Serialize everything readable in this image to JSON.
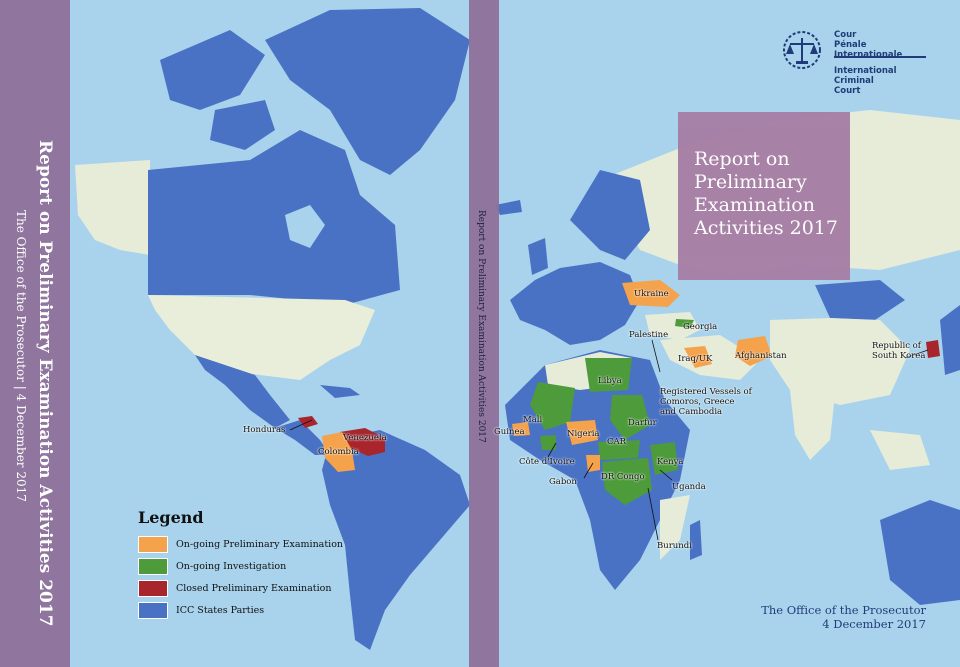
{
  "spine_title": "Report on Preliminary Examination Activities 2017",
  "spine_subtitle": "The Office of the Prosecutor | 4 December 2017",
  "spine_small": "Report on Preliminary Examination Activities 2017",
  "cover_title": [
    "Report on",
    "Preliminary",
    "Examination",
    "Activities 2017"
  ],
  "logo": {
    "line1": "Cour",
    "line2": "Pénale",
    "line3": "Internationale",
    "line4": "International",
    "line5": "Criminal",
    "line6": "Court"
  },
  "footer": {
    "line1": "The Office of the Prosecutor",
    "line2": "4 December 2017"
  },
  "legend": {
    "title": "Legend",
    "items": [
      {
        "label": "On-going Preliminary Examination",
        "color": "#f4a24b"
      },
      {
        "label": "On-going Investigation",
        "color": "#4d9b3a"
      },
      {
        "label": "Closed Preliminary Examination",
        "color": "#a8252c"
      },
      {
        "label": "ICC States Parties",
        "color": "#4a72c4"
      }
    ]
  },
  "map_labels": {
    "honduras": "Honduras",
    "venezuela": "Venezuela",
    "colombia": "Colombia",
    "ukraine": "Ukraine",
    "georgia": "Georgia",
    "palestine": "Palestine",
    "iraq_uk": "Iraq/UK",
    "afghanistan": "Afghanistan",
    "south_korea_1": "Republic of",
    "south_korea_2": "South Korea",
    "libya": "Libya",
    "vessels_1": "Registered Vessels of",
    "vessels_2": "Comoros, Greece",
    "vessels_3": "and Cambodia",
    "mali": "Mali",
    "guinea": "Guinea",
    "nigeria": "Nigeria",
    "darfur": "Darfur",
    "car": "CAR",
    "cote": "Côte d'Ivoire",
    "kenya": "Kenya",
    "gabon": "Gabon",
    "drc": "DR Congo",
    "uganda": "Uganda",
    "burundi": "Burundi"
  },
  "colors": {
    "ocean": "#a9d3ec",
    "land": "#e9eedd",
    "spine": "#8e6f98",
    "states_parties": "#4a72c4",
    "ongoing_pe": "#f4a24b",
    "investigation": "#4d9b3a",
    "closed_pe": "#a8252c"
  }
}
